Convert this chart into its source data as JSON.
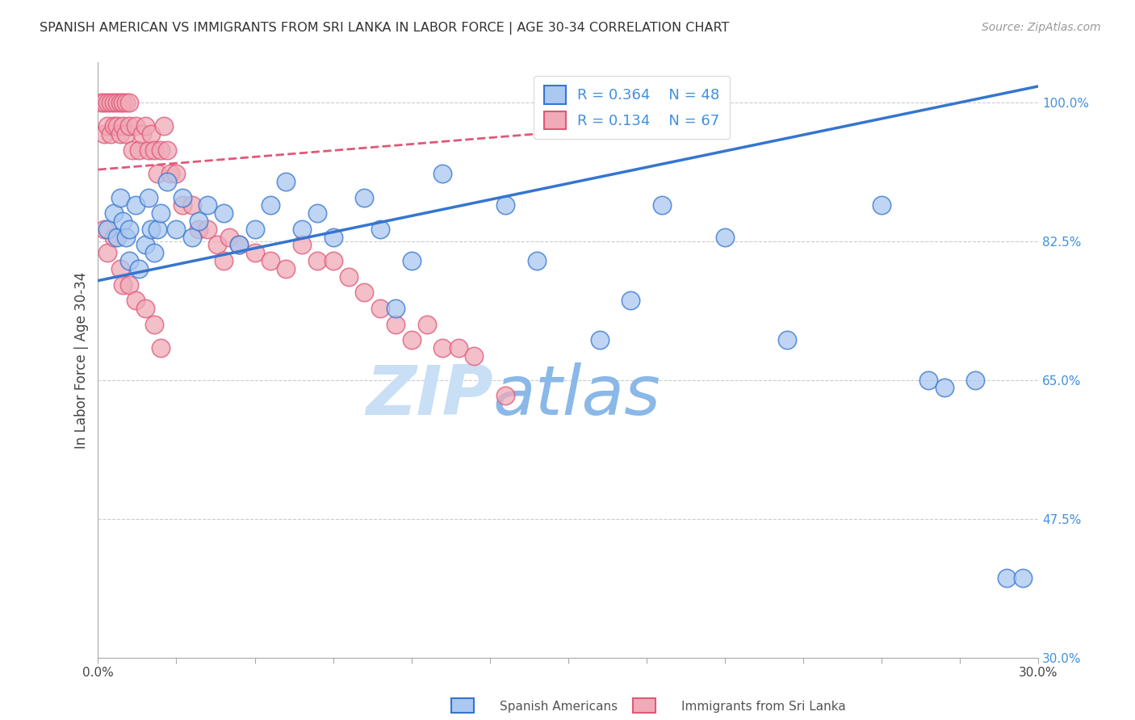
{
  "title": "SPANISH AMERICAN VS IMMIGRANTS FROM SRI LANKA IN LABOR FORCE | AGE 30-34 CORRELATION CHART",
  "source": "Source: ZipAtlas.com",
  "ylabel": "In Labor Force | Age 30-34",
  "xlim": [
    0.0,
    0.3
  ],
  "ylim": [
    0.3,
    1.05
  ],
  "yticks": [
    0.3,
    0.475,
    0.65,
    0.825,
    1.0
  ],
  "ytick_labels": [
    "30.0%",
    "47.5%",
    "65.0%",
    "82.5%",
    "100.0%"
  ],
  "xticks": [
    0.0,
    0.025,
    0.05,
    0.075,
    0.1,
    0.125,
    0.15,
    0.175,
    0.2,
    0.225,
    0.25,
    0.275,
    0.3
  ],
  "xtick_labels": [
    "0.0%",
    "",
    "",
    "",
    "",
    "",
    "",
    "",
    "",
    "",
    "",
    "",
    "30.0%"
  ],
  "blue_R": 0.364,
  "blue_N": 48,
  "pink_R": 0.134,
  "pink_N": 67,
  "blue_color": "#aac8f0",
  "pink_color": "#f0aab8",
  "blue_line_color": "#3575d0",
  "pink_line_color": "#e05878",
  "grid_color": "#cccccc",
  "right_tick_color": "#4090e0",
  "watermark_zip_color": "#c8dff5",
  "watermark_atlas_color": "#8ab8e8",
  "legend_text_color": "#4090e0",
  "blue_line_x0": 0.0,
  "blue_line_y0": 0.775,
  "blue_line_x1": 0.3,
  "blue_line_y1": 1.02,
  "pink_line_x0": 0.0,
  "pink_line_y0": 0.915,
  "pink_line_x1": 0.14,
  "pink_line_y1": 0.96,
  "blue_scatter_x": [
    0.003,
    0.005,
    0.006,
    0.007,
    0.008,
    0.009,
    0.01,
    0.01,
    0.012,
    0.013,
    0.015,
    0.016,
    0.017,
    0.018,
    0.019,
    0.02,
    0.022,
    0.025,
    0.027,
    0.03,
    0.032,
    0.035,
    0.04,
    0.045,
    0.05,
    0.055,
    0.06,
    0.065,
    0.07,
    0.075,
    0.085,
    0.09,
    0.095,
    0.1,
    0.11,
    0.13,
    0.14,
    0.16,
    0.17,
    0.18,
    0.2,
    0.22,
    0.25,
    0.265,
    0.27,
    0.28,
    0.29,
    0.295
  ],
  "blue_scatter_y": [
    0.84,
    0.86,
    0.83,
    0.88,
    0.85,
    0.83,
    0.8,
    0.84,
    0.87,
    0.79,
    0.82,
    0.88,
    0.84,
    0.81,
    0.84,
    0.86,
    0.9,
    0.84,
    0.88,
    0.83,
    0.85,
    0.87,
    0.86,
    0.82,
    0.84,
    0.87,
    0.9,
    0.84,
    0.86,
    0.83,
    0.88,
    0.84,
    0.74,
    0.8,
    0.91,
    0.87,
    0.8,
    0.7,
    0.75,
    0.87,
    0.83,
    0.7,
    0.87,
    0.65,
    0.64,
    0.65,
    0.4,
    0.4
  ],
  "pink_scatter_x": [
    0.001,
    0.002,
    0.002,
    0.003,
    0.003,
    0.004,
    0.004,
    0.005,
    0.005,
    0.006,
    0.006,
    0.007,
    0.007,
    0.008,
    0.008,
    0.009,
    0.009,
    0.01,
    0.01,
    0.011,
    0.012,
    0.013,
    0.014,
    0.015,
    0.016,
    0.017,
    0.018,
    0.019,
    0.02,
    0.021,
    0.022,
    0.023,
    0.025,
    0.027,
    0.03,
    0.032,
    0.035,
    0.038,
    0.04,
    0.042,
    0.045,
    0.05,
    0.055,
    0.06,
    0.065,
    0.07,
    0.075,
    0.08,
    0.085,
    0.09,
    0.095,
    0.1,
    0.105,
    0.11,
    0.115,
    0.12,
    0.13,
    0.002,
    0.003,
    0.005,
    0.007,
    0.008,
    0.01,
    0.012,
    0.015,
    0.018,
    0.02
  ],
  "pink_scatter_y": [
    1.0,
    1.0,
    0.96,
    1.0,
    0.97,
    1.0,
    0.96,
    1.0,
    0.97,
    1.0,
    0.97,
    1.0,
    0.96,
    1.0,
    0.97,
    1.0,
    0.96,
    1.0,
    0.97,
    0.94,
    0.97,
    0.94,
    0.96,
    0.97,
    0.94,
    0.96,
    0.94,
    0.91,
    0.94,
    0.97,
    0.94,
    0.91,
    0.91,
    0.87,
    0.87,
    0.84,
    0.84,
    0.82,
    0.8,
    0.83,
    0.82,
    0.81,
    0.8,
    0.79,
    0.82,
    0.8,
    0.8,
    0.78,
    0.76,
    0.74,
    0.72,
    0.7,
    0.72,
    0.69,
    0.69,
    0.68,
    0.63,
    0.84,
    0.81,
    0.83,
    0.79,
    0.77,
    0.77,
    0.75,
    0.74,
    0.72,
    0.69
  ]
}
